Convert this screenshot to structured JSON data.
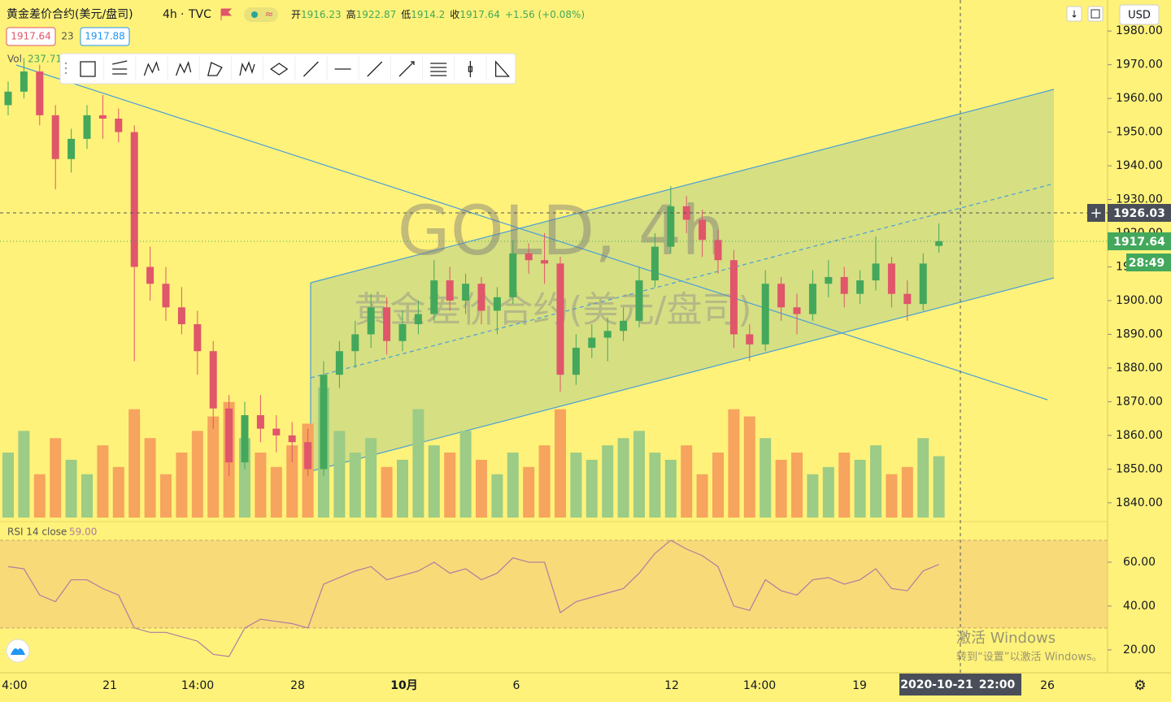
{
  "header": {
    "symbol": "黄金差价合约(美元/盘司)",
    "interval": "4h",
    "source": "TVC",
    "quote": [
      {
        "label": "开",
        "value": 1916.23
      },
      {
        "label": "高",
        "value": 1922.87
      },
      {
        "label": "低",
        "value": 1914.2
      },
      {
        "label": "收",
        "value": 1917.64
      }
    ],
    "change": "+1.56 (+0.08%)"
  },
  "tags": {
    "bid": 1917.64,
    "spread": 23,
    "ask": 1917.88
  },
  "volume_legend": {
    "label": "Vol",
    "value": 237.71
  },
  "rsi_legend": {
    "label": "RSI 14 close",
    "value": "59.00"
  },
  "price_axis": {
    "currency": "USD",
    "crosshair_label": "1926.03",
    "last_price": "1917.64",
    "countdown": "28:49"
  },
  "time_axis": {
    "labels": [
      "4:00",
      "21",
      "14:00",
      "28",
      "10月",
      "6",
      "12",
      "14:00",
      "19",
      "26"
    ],
    "crosshair_date": "2020-10-21",
    "crosshair_time": "22:00"
  },
  "watermark": {
    "title": "GOLD, 4h",
    "subtitle": "黄金差价合约(美元/盘司)"
  },
  "windows_notice": {
    "title": "激活 Windows",
    "text": "转到“设置”以激活 Windows。"
  },
  "chart_data": {
    "type": "candlestick",
    "up_color": "#43a85b",
    "down_color": "#e0566a",
    "volume_up_color": "#9ccc85",
    "volume_down_color": "#f6a45e",
    "rsi_color": "#b07ca0",
    "ohlc": [
      [
        1958,
        1965,
        1955,
        1962
      ],
      [
        1962,
        1972,
        1960,
        1968
      ],
      [
        1968,
        1970,
        1952,
        1955
      ],
      [
        1955,
        1958,
        1933,
        1942
      ],
      [
        1942,
        1951,
        1938,
        1948
      ],
      [
        1948,
        1958,
        1945,
        1955
      ],
      [
        1955,
        1961,
        1948,
        1954
      ],
      [
        1954,
        1957,
        1947,
        1950
      ],
      [
        1950,
        1952,
        1882,
        1910
      ],
      [
        1910,
        1916,
        1900,
        1905
      ],
      [
        1905,
        1910,
        1894,
        1898
      ],
      [
        1898,
        1904,
        1890,
        1893
      ],
      [
        1893,
        1897,
        1878,
        1885
      ],
      [
        1885,
        1888,
        1862,
        1868
      ],
      [
        1868,
        1872,
        1848,
        1852
      ],
      [
        1852,
        1870,
        1850,
        1866
      ],
      [
        1866,
        1872,
        1858,
        1862
      ],
      [
        1862,
        1866,
        1855,
        1860
      ],
      [
        1860,
        1864,
        1852,
        1858
      ],
      [
        1858,
        1862,
        1848,
        1850
      ],
      [
        1850,
        1882,
        1848,
        1878
      ],
      [
        1878,
        1888,
        1874,
        1885
      ],
      [
        1885,
        1894,
        1880,
        1890
      ],
      [
        1890,
        1902,
        1886,
        1898
      ],
      [
        1898,
        1901,
        1884,
        1888
      ],
      [
        1888,
        1897,
        1885,
        1893
      ],
      [
        1893,
        1900,
        1890,
        1896
      ],
      [
        1896,
        1912,
        1894,
        1906
      ],
      [
        1906,
        1910,
        1897,
        1900
      ],
      [
        1900,
        1908,
        1896,
        1905
      ],
      [
        1905,
        1907,
        1893,
        1897
      ],
      [
        1897,
        1904,
        1890,
        1901
      ],
      [
        1901,
        1918,
        1899,
        1914
      ],
      [
        1914,
        1917,
        1908,
        1912
      ],
      [
        1912,
        1920,
        1905,
        1911
      ],
      [
        1911,
        1913,
        1873,
        1878
      ],
      [
        1878,
        1890,
        1875,
        1886
      ],
      [
        1886,
        1893,
        1883,
        1889
      ],
      [
        1889,
        1895,
        1882,
        1891
      ],
      [
        1891,
        1898,
        1888,
        1894
      ],
      [
        1894,
        1910,
        1892,
        1906
      ],
      [
        1906,
        1920,
        1904,
        1916
      ],
      [
        1916,
        1934,
        1914,
        1928
      ],
      [
        1928,
        1931,
        1920,
        1924
      ],
      [
        1924,
        1927,
        1913,
        1918
      ],
      [
        1918,
        1921,
        1908,
        1912
      ],
      [
        1912,
        1915,
        1886,
        1890
      ],
      [
        1890,
        1893,
        1882,
        1887
      ],
      [
        1887,
        1909,
        1885,
        1905
      ],
      [
        1905,
        1907,
        1894,
        1898
      ],
      [
        1898,
        1902,
        1890,
        1896
      ],
      [
        1896,
        1909,
        1894,
        1905
      ],
      [
        1905,
        1912,
        1901,
        1907
      ],
      [
        1907,
        1910,
        1898,
        1902
      ],
      [
        1902,
        1909,
        1899,
        1906
      ],
      [
        1906,
        1919,
        1903,
        1911
      ],
      [
        1911,
        1913,
        1898,
        1902
      ],
      [
        1902,
        1906,
        1894,
        1899
      ],
      [
        1899,
        1914,
        1897,
        1911
      ],
      [
        1916.23,
        1922.87,
        1914.2,
        1917.64
      ]
    ],
    "volumes": [
      90,
      120,
      60,
      110,
      80,
      60,
      100,
      70,
      150,
      110,
      60,
      90,
      120,
      140,
      160,
      110,
      90,
      70,
      100,
      130,
      180,
      120,
      90,
      110,
      70,
      80,
      150,
      100,
      90,
      120,
      80,
      60,
      90,
      70,
      100,
      150,
      90,
      80,
      100,
      110,
      120,
      90,
      80,
      100,
      60,
      90,
      150,
      140,
      110,
      80,
      90,
      60,
      70,
      90,
      80,
      100,
      60,
      70,
      110,
      85
    ],
    "rsi": [
      58,
      57,
      45,
      42,
      52,
      52,
      48,
      45,
      30,
      28,
      28,
      26,
      24,
      18,
      17,
      30,
      34,
      33,
      32,
      30,
      50,
      53,
      56,
      58,
      52,
      54,
      56,
      60,
      55,
      57,
      52,
      55,
      62,
      60,
      60,
      37,
      42,
      44,
      46,
      48,
      55,
      64,
      70,
      66,
      63,
      58,
      40,
      38,
      52,
      47,
      45,
      52,
      53,
      50,
      52,
      57,
      48,
      47,
      56,
      59
    ],
    "ylim": [
      1834.9,
      1989.2
    ],
    "yticks": [
      {
        "value": 1840,
        "label": "1840.00"
      },
      {
        "value": 1850,
        "label": "1850.00"
      },
      {
        "value": 1860,
        "label": "1860.00"
      },
      {
        "value": 1870,
        "label": "1870.00"
      },
      {
        "value": 1880,
        "label": "1880.00"
      },
      {
        "value": 1890,
        "label": "1890.00"
      },
      {
        "value": 1900,
        "label": "1900.00"
      },
      {
        "value": 1910,
        "label": "1910.00"
      },
      {
        "value": 1920,
        "label": "1920.00"
      },
      {
        "value": 1930,
        "label": "1930.00"
      },
      {
        "value": 1940,
        "label": "1940.00"
      },
      {
        "value": 1950,
        "label": "1950.00"
      },
      {
        "value": 1960,
        "label": "1960.00"
      },
      {
        "value": 1970,
        "label": "1970.00"
      },
      {
        "value": 1980,
        "label": "1980.00"
      }
    ],
    "rsi_ylim": [
      10.7,
      77.4
    ],
    "rsi_yticks": [
      {
        "value": 20,
        "label": "20.00"
      },
      {
        "value": 40,
        "label": "40.00"
      },
      {
        "value": 60,
        "label": "60.00"
      }
    ],
    "rsi_band": [
      30,
      70
    ]
  }
}
